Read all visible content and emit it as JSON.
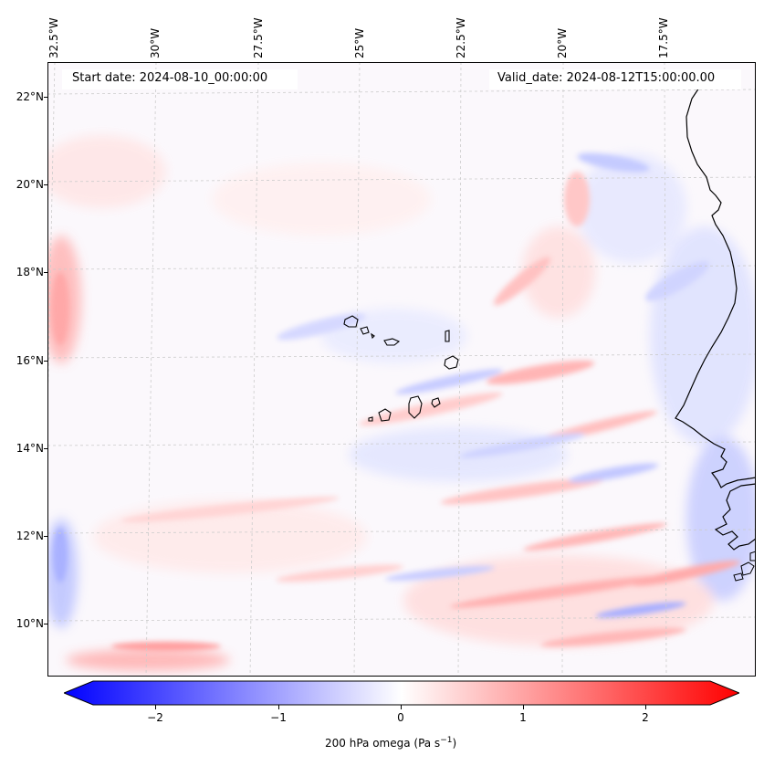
{
  "header": {
    "start_date": "Start date: 2024-08-10_00:00:00",
    "valid_date": "Valid_date: 2024-08-12T15:00:00.00"
  },
  "axes": {
    "lon_labels": [
      "32.5°W",
      "30°W",
      "27.5°W",
      "25°W",
      "22.5°W",
      "20°W",
      "17.5°W"
    ],
    "lat_labels": [
      "22°N",
      "20°N",
      "18°N",
      "16°N",
      "14°N",
      "12°N",
      "10°N"
    ]
  },
  "colorbar": {
    "label": "200 hPa omega (Pa s",
    "label_sup": "−1",
    "label_end": ")",
    "tick_labels": [
      "−2",
      "−1",
      "0",
      "1",
      "2"
    ],
    "range": [
      -2.6,
      2.6
    ],
    "low_color": "#0000ff",
    "mid_color": "#ffffff",
    "high_color": "#ff0000"
  },
  "map": {
    "field": "200 hPa omega",
    "units": "Pa s-1",
    "extent_lon": [
      -32.5,
      -15.5
    ],
    "extent_lat": [
      8.8,
      22.8
    ],
    "coastline_color": "#000000"
  }
}
